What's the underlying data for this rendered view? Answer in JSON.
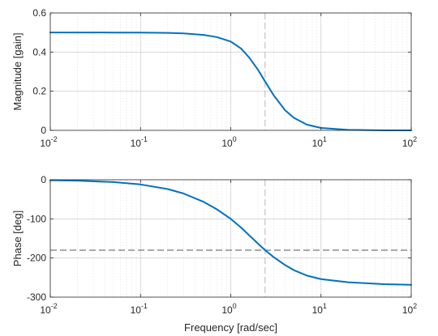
{
  "chart_data": [
    {
      "type": "line",
      "xscale": "log",
      "xlim": [
        0.01,
        100
      ],
      "ylim": [
        0,
        0.6
      ],
      "ylabel": "Magnitude [gain]",
      "xlabel": "",
      "grid": true,
      "xticks": [
        "10^-2",
        "10^-1",
        "10^0",
        "10^1",
        "10^2"
      ],
      "yticks": [
        "0",
        "0.2",
        "0.4",
        "0.6"
      ],
      "series": [
        {
          "color": "#0072BD",
          "x": [
            0.01,
            0.02,
            0.05,
            0.1,
            0.2,
            0.3,
            0.5,
            0.7,
            1.0,
            1.3,
            1.6,
            2.0,
            2.4,
            3.0,
            4.0,
            5.0,
            7.0,
            10.0,
            20.0,
            50.0,
            100.0
          ],
          "y": [
            0.5,
            0.5,
            0.4999,
            0.4995,
            0.498,
            0.4955,
            0.4879,
            0.4767,
            0.454,
            0.418,
            0.372,
            0.31,
            0.25,
            0.178,
            0.103,
            0.064,
            0.029,
            0.0123,
            0.0025,
            0.0002,
            0.0
          ]
        }
      ],
      "marker_line": {
        "x": 2.4,
        "style": "dashed",
        "color": "#b0b0b0"
      }
    },
    {
      "type": "line",
      "xscale": "log",
      "xlim": [
        0.01,
        100
      ],
      "ylim": [
        -300,
        0
      ],
      "ylabel": "Phase [deg]",
      "xlabel": "Frequency [rad/sec]",
      "grid": true,
      "xticks": [
        "10^-2",
        "10^-1",
        "10^0",
        "10^1",
        "10^2"
      ],
      "yticks": [
        "0",
        "-100",
        "-200",
        "-300"
      ],
      "series": [
        {
          "color": "#0072BD",
          "x": [
            0.01,
            0.02,
            0.05,
            0.1,
            0.2,
            0.3,
            0.5,
            0.7,
            1.0,
            1.3,
            1.6,
            2.0,
            2.4,
            3.0,
            4.0,
            5.0,
            7.0,
            10.0,
            20.0,
            50.0,
            100.0
          ],
          "y": [
            -1.2,
            -2.4,
            -6.0,
            -12.0,
            -23.8,
            -35.2,
            -56.5,
            -75.5,
            -100.0,
            -122.0,
            -142.0,
            -163.0,
            -180.0,
            -198.0,
            -218.0,
            -231.0,
            -245.0,
            -254.0,
            -262.0,
            -267.0,
            -268.5
          ]
        }
      ],
      "reference_line": {
        "y": -180,
        "style": "dashed",
        "color": "#555555"
      },
      "marker_line": {
        "x": 2.4,
        "style": "dashed",
        "color": "#b0b0b0"
      }
    }
  ]
}
